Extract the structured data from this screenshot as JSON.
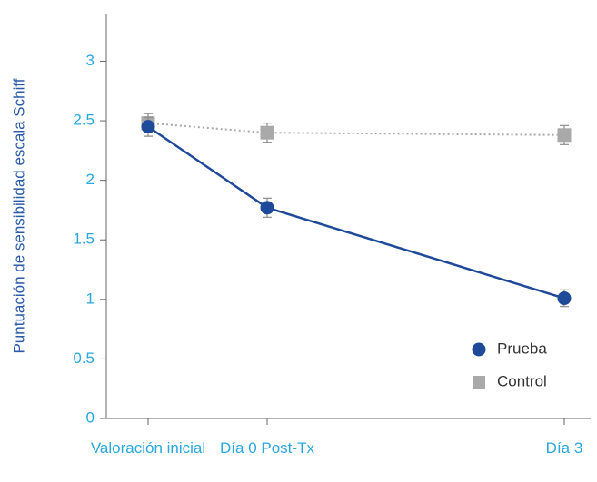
{
  "chart_data": {
    "type": "line",
    "y_label": "Puntuación de sensibilidad escala Schiff",
    "categories": [
      "Valoración inicial",
      "Día 0 Post-Tx",
      "Día 3"
    ],
    "series": [
      {
        "name": "Prueba",
        "color": "#1f4a99",
        "values": [
          2.45,
          1.77,
          1.01
        ],
        "errors": [
          0.08,
          0.08,
          0.07
        ]
      },
      {
        "name": "Control",
        "color": "#a9a9a9",
        "values": [
          2.48,
          2.4,
          2.38
        ],
        "errors": [
          0.08,
          0.08,
          0.08
        ]
      }
    ],
    "ylim": [
      0,
      3.4
    ],
    "yticks": [
      0,
      0.5,
      1,
      1.5,
      2,
      2.5,
      3
    ],
    "legend": "lower right"
  }
}
